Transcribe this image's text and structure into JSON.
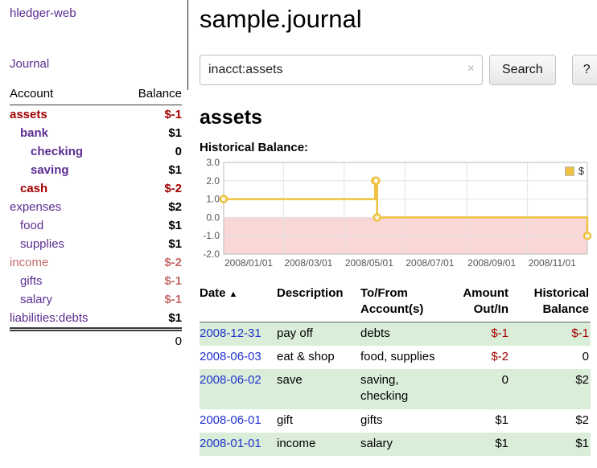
{
  "app": {
    "title": "hledger-web",
    "journal_link": "Journal"
  },
  "header": {
    "title": "sample.journal"
  },
  "search": {
    "value": "inacct:assets",
    "clear_icon": "×",
    "button_label": "Search",
    "help_label": "?"
  },
  "main": {
    "account_heading": "assets",
    "chart_label": "Historical Balance:"
  },
  "sidebar": {
    "col_account": "Account",
    "col_balance": "Balance",
    "accounts": [
      {
        "name": "assets",
        "indent": 0,
        "bold": true,
        "name_color": "negative",
        "balance": "$-1",
        "balance_color": "negative"
      },
      {
        "name": "bank",
        "indent": 1,
        "bold": true,
        "balance": "$1"
      },
      {
        "name": "checking",
        "indent": 2,
        "bold": true,
        "balance": "0"
      },
      {
        "name": "saving",
        "indent": 2,
        "bold": true,
        "balance": "$1"
      },
      {
        "name": "cash",
        "indent": 1,
        "bold": true,
        "name_color": "negative",
        "balance": "$-2",
        "balance_color": "negative"
      },
      {
        "name": "expenses",
        "indent": 0,
        "bold": false,
        "balance": "$2"
      },
      {
        "name": "food",
        "indent": 1,
        "bold": false,
        "balance": "$1"
      },
      {
        "name": "supplies",
        "indent": 1,
        "bold": false,
        "balance": "$1"
      },
      {
        "name": "income",
        "indent": 0,
        "bold": false,
        "name_color": "negative-soft",
        "balance": "$-2",
        "balance_color": "negative-soft"
      },
      {
        "name": "gifts",
        "indent": 1,
        "bold": false,
        "balance": "$-1",
        "balance_color": "negative-soft"
      },
      {
        "name": "salary",
        "indent": 1,
        "bold": false,
        "balance": "$-1",
        "balance_color": "negative-soft"
      },
      {
        "name": "liabilities:debts",
        "indent": 0,
        "bold": false,
        "balance": "$1"
      }
    ],
    "total": "0"
  },
  "chart_data": {
    "type": "line",
    "step": true,
    "title": "Historical Balance:",
    "legend": "$",
    "legend_position": "top-right",
    "grid": true,
    "ylim": [
      -2.0,
      3.0
    ],
    "yticks": [
      "3.0",
      "2.0",
      "1.0",
      "0.0",
      "-1.0",
      "-2.0"
    ],
    "x_range": [
      "2008-01-01",
      "2008-12-31"
    ],
    "xticks": [
      {
        "date": "2008-01-01",
        "label": "2008/01/01"
      },
      {
        "date": "2008-03-01",
        "label": "2008/03/01"
      },
      {
        "date": "2008-05-01",
        "label": "2008/05/01"
      },
      {
        "date": "2008-07-01",
        "label": "2008/07/01"
      },
      {
        "date": "2008-09-01",
        "label": "2008/09/01"
      },
      {
        "date": "2008-11-01",
        "label": "2008/11/01"
      }
    ],
    "series": [
      {
        "name": "$",
        "points": [
          {
            "date": "2008-01-01",
            "value": 1
          },
          {
            "date": "2008-06-01",
            "value": 2
          },
          {
            "date": "2008-06-02",
            "value": 2
          },
          {
            "date": "2008-06-03",
            "value": 0
          },
          {
            "date": "2008-12-31",
            "value": -1
          }
        ]
      }
    ],
    "colors": {
      "series": "#edc240",
      "negative_region": "#f9d7d7",
      "grid": "#e3e3e3",
      "border": "#bbbbbb"
    }
  },
  "register": {
    "sort_icon": "▲",
    "columns": {
      "date": "Date",
      "description": "Description",
      "accounts": "To/From Account(s)",
      "amount": "Amount Out/In",
      "balance": "Historical Balance"
    },
    "rows": [
      {
        "date": "2008-12-31",
        "description": "pay off",
        "accounts": "debts",
        "amount": "$-1",
        "amount_color": "negative",
        "balance": "$-1",
        "balance_color": "negative"
      },
      {
        "date": "2008-06-03",
        "description": "eat & shop",
        "accounts": "food, supplies",
        "amount": "$-2",
        "amount_color": "negative",
        "balance": "0"
      },
      {
        "date": "2008-06-02",
        "description": "save",
        "accounts": "saving, checking",
        "amount": "0",
        "balance": "$2"
      },
      {
        "date": "2008-06-01",
        "description": "gift",
        "accounts": "gifts",
        "amount": "$1",
        "balance": "$2"
      },
      {
        "date": "2008-01-01",
        "description": "income",
        "accounts": "salary",
        "amount": "$1",
        "balance": "$1"
      }
    ]
  },
  "colors": {
    "link_purple": "#5c2d91",
    "link_blue": "#2233cc",
    "negative": "#a40000",
    "negative_soft": "#c46a6a",
    "row_green": "#d9edd9",
    "chart_series": "#edc240"
  }
}
